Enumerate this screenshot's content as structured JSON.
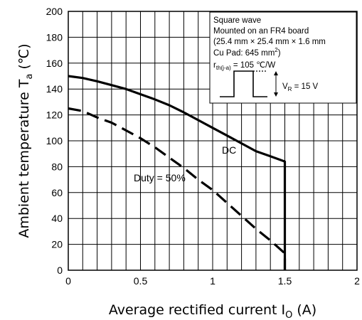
{
  "chart_data": {
    "type": "line",
    "title": "",
    "xlabel": "Average rectified current I",
    "xlabel_sub": "O",
    "xlabel_unit": " (A)",
    "ylabel": "Ambient temperature T",
    "ylabel_sub": "a",
    "ylabel_unit": " (℃)",
    "xlim": [
      0,
      2
    ],
    "ylim": [
      0,
      200
    ],
    "x_ticks": [
      "0",
      "0.5",
      "1",
      "1.5",
      "2"
    ],
    "y_ticks": [
      "0",
      "20",
      "40",
      "60",
      "80",
      "100",
      "120",
      "140",
      "160",
      "180",
      "200"
    ],
    "grid": true,
    "series": [
      {
        "name": "DC",
        "style": "solid",
        "x": [
          0,
          0.1,
          0.2,
          0.3,
          0.4,
          0.5,
          0.6,
          0.7,
          0.8,
          0.9,
          1.0,
          1.1,
          1.2,
          1.3,
          1.4,
          1.5,
          1.5
        ],
        "y": [
          150,
          148.5,
          146,
          143,
          140,
          136,
          132,
          127.5,
          122,
          116,
          110,
          104,
          98,
          92,
          88,
          84,
          0
        ]
      },
      {
        "name": "Duty = 50%",
        "style": "dashed",
        "x": [
          0,
          0.1,
          0.2,
          0.3,
          0.4,
          0.5,
          0.6,
          0.7,
          0.8,
          0.9,
          1.0,
          1.1,
          1.2,
          1.3,
          1.4,
          1.5,
          1.5
        ],
        "y": [
          125,
          123,
          118,
          114,
          108,
          102,
          95,
          87,
          79,
          70,
          62,
          52,
          42,
          32,
          23,
          13,
          0
        ]
      }
    ],
    "annotations": {
      "line1": "Square wave",
      "line2": "Mounted on an FR4 board",
      "line3": "(25.4 mm × 25.4 mm × 1.6 mm",
      "line4_pre": "Cu Pad: 645 mm",
      "line4_sup": "2",
      "line4_post": ")",
      "rth_main": "r",
      "rth_sub": "th(j-a)",
      "rth_post": " = 105 ℃/W",
      "vr_main": "V",
      "vr_sub": "R",
      "vr_post": " = 15 V"
    }
  }
}
